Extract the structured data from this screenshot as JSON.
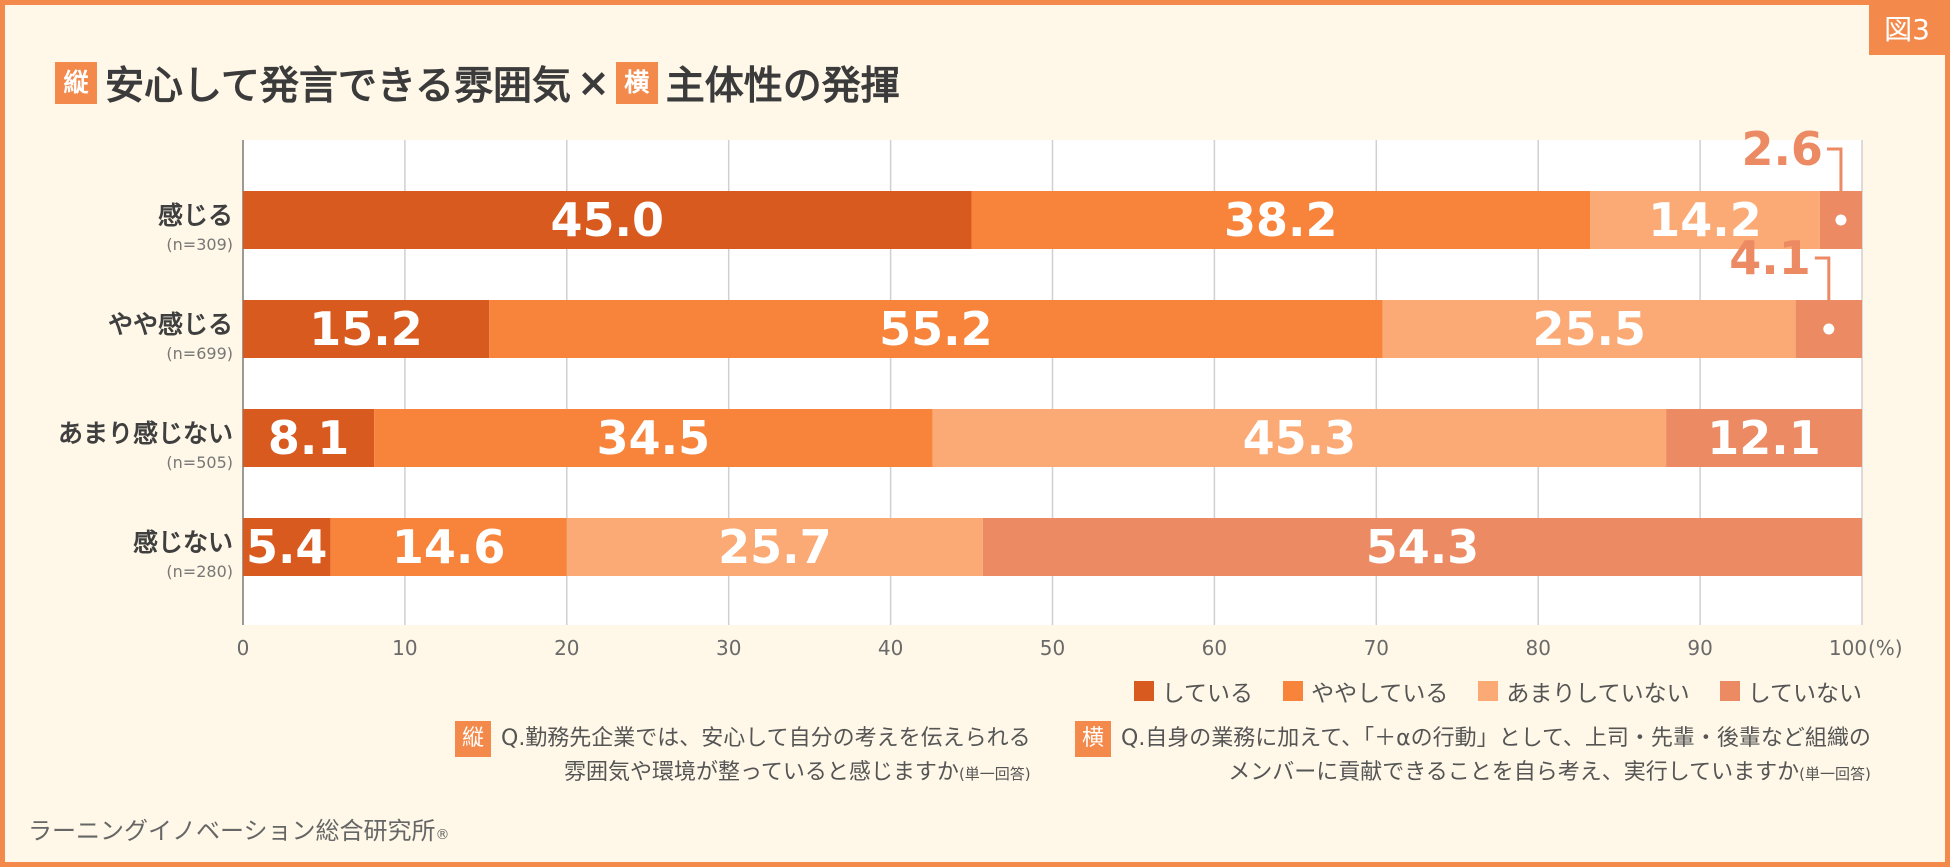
{
  "figure_tag": "図3",
  "title": {
    "badge_vertical": "縦",
    "part1": "安心して発言できる雰囲気",
    "cross": "×",
    "badge_horizontal": "横",
    "part2": "主体性の発揮"
  },
  "legend": [
    {
      "label": "している",
      "color": "#d85a1e"
    },
    {
      "label": "ややしている",
      "color": "#f7843a"
    },
    {
      "label": "あまりしていない",
      "color": "#fbaa76"
    },
    {
      "label": "していない",
      "color": "#ec8a63"
    }
  ],
  "chart_data": {
    "type": "bar",
    "orientation": "horizontal-stacked",
    "title": "安心して発言できる雰囲気×主体性の発揮",
    "xlim": [
      0,
      100
    ],
    "x_ticks": [
      "0",
      "10",
      "20",
      "30",
      "40",
      "50",
      "60",
      "70",
      "80",
      "90",
      "100"
    ],
    "x_unit": "(%)",
    "categories": [
      {
        "label": "感じる",
        "n": "(n=309)"
      },
      {
        "label": "やや感じる",
        "n": "(n=699)"
      },
      {
        "label": "あまり感じない",
        "n": "(n=505)"
      },
      {
        "label": "感じない",
        "n": "(n=280)"
      }
    ],
    "series": [
      {
        "name": "している",
        "values": [
          45.0,
          15.2,
          8.1,
          5.4
        ],
        "labels": [
          "45.0",
          "15.2",
          "8.1",
          "5.4"
        ]
      },
      {
        "name": "ややしている",
        "values": [
          38.2,
          55.2,
          34.5,
          14.6
        ],
        "labels": [
          "38.2",
          "55.2",
          "34.5",
          "14.6"
        ]
      },
      {
        "name": "あまりしていない",
        "values": [
          14.2,
          25.5,
          45.3,
          25.7
        ],
        "labels": [
          "14.2",
          "25.5",
          "45.3",
          "25.7"
        ]
      },
      {
        "name": "していない",
        "values": [
          2.6,
          4.1,
          12.1,
          54.3
        ],
        "labels": [
          "2.6",
          "4.1",
          "12.1",
          "54.3"
        ]
      }
    ]
  },
  "questions": {
    "vertical": {
      "badge": "縦",
      "line1": "Q.勤務先企業では、安心して自分の考えを伝えられる",
      "line2": "雰囲気や環境が整っていると感じますか",
      "note": "(単一回答)"
    },
    "horizontal": {
      "badge": "横",
      "line1": "Q.自身の業務に加えて、「＋αの行動」として、上司・先輩・後輩など組織の",
      "line2": "メンバーに貢献できることを自ら考え、実行していますか",
      "note": "(単一回答)"
    }
  },
  "organization": {
    "name": "ラーニングイノベーション総合研究所",
    "mark": "®"
  }
}
